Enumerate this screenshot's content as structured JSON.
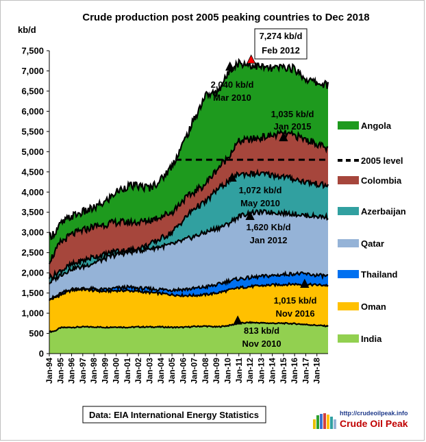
{
  "chart_data": {
    "type": "area",
    "title": "Crude  production post 2005 peaking countries to Dec 2018",
    "ylabel": "kb/d",
    "ylim": [
      0,
      7500
    ],
    "yticks": [
      "0",
      "500",
      "1,000",
      "1,500",
      "2,000",
      "2,500",
      "3,000",
      "3,500",
      "4,000",
      "4,500",
      "5,000",
      "5,500",
      "6,000",
      "6,500",
      "7,000",
      "7,500"
    ],
    "xticks": [
      "Jan-94",
      "Jan-95",
      "Jan-96",
      "Jan-97",
      "Jan-98",
      "Jan-99",
      "Jan-00",
      "Jan-01",
      "Jan-02",
      "Jan-03",
      "Jan-04",
      "Jan-05",
      "Jan-06",
      "Jan-07",
      "Jan-08",
      "Jan-09",
      "Jan-10",
      "Jan-11",
      "Jan-12",
      "Jan-13",
      "Jan-14",
      "Jan-15",
      "Jan-16",
      "Jan-17",
      "Jan-18"
    ],
    "x_range": [
      1994.0,
      2019.0
    ],
    "stack_order": [
      "India",
      "Oman",
      "Thailand",
      "Qatar",
      "Azerbaijan",
      "Colombia",
      "Angola"
    ],
    "colors": {
      "India": "#92d050",
      "Oman": "#ffc000",
      "Thailand": "#0070f0",
      "Qatar": "#95b3d7",
      "Azerbaijan": "#31a0a0",
      "Colombia": "#a6463c",
      "Angola": "#1e9a1e",
      "level2005": "#000000",
      "outline": "#000000",
      "peak_marker": "#ff0000",
      "country_peak_marker": "#000000"
    },
    "cumulative_anchors_x": [
      1994.0,
      1994.5,
      1995.0,
      1996.0,
      1997.0,
      1998.0,
      1999.0,
      2000.0,
      2001.0,
      2002.0,
      2003.0,
      2004.0,
      2005.0,
      2006.0,
      2007.0,
      2008.0,
      2009.0,
      2010.0,
      2010.2,
      2011.0,
      2012.0,
      2013.0,
      2014.0,
      2015.0,
      2016.0,
      2017.0,
      2018.0,
      2019.0
    ],
    "series": [
      {
        "name": "India",
        "cumulative": [
          540,
          560,
          640,
          650,
          660,
          660,
          650,
          660,
          650,
          660,
          660,
          660,
          650,
          650,
          670,
          680,
          660,
          690,
          700,
          750,
          770,
          760,
          750,
          750,
          740,
          720,
          700,
          680
        ]
      },
      {
        "name": "Oman",
        "cumulative": [
          1330,
          1380,
          1450,
          1570,
          1590,
          1560,
          1540,
          1560,
          1560,
          1540,
          1510,
          1490,
          1460,
          1440,
          1440,
          1460,
          1500,
          1560,
          1580,
          1630,
          1660,
          1680,
          1700,
          1710,
          1720,
          1710,
          1700,
          1690
        ]
      },
      {
        "name": "Thailand",
        "cumulative": [
          1350,
          1400,
          1480,
          1590,
          1610,
          1600,
          1580,
          1620,
          1640,
          1620,
          1600,
          1590,
          1580,
          1590,
          1610,
          1650,
          1700,
          1790,
          1810,
          1850,
          1880,
          1910,
          1930,
          1960,
          1980,
          1970,
          1940,
          1920
        ]
      },
      {
        "name": "Qatar",
        "cumulative": [
          1750,
          1850,
          1950,
          2100,
          2150,
          2250,
          2350,
          2450,
          2500,
          2550,
          2600,
          2650,
          2700,
          2800,
          2900,
          3000,
          3100,
          3200,
          3250,
          3400,
          3480,
          3500,
          3500,
          3480,
          3460,
          3420,
          3400,
          3380
        ]
      },
      {
        "name": "Azerbaijan",
        "cumulative": [
          1900,
          1950,
          2050,
          2200,
          2300,
          2400,
          2450,
          2550,
          2550,
          2600,
          2700,
          2850,
          3000,
          3300,
          3600,
          3750,
          4050,
          4250,
          4300,
          4450,
          4450,
          4450,
          4420,
          4380,
          4320,
          4250,
          4200,
          4150
        ]
      },
      {
        "name": "Colombia",
        "cumulative": [
          2300,
          2500,
          2750,
          2950,
          3050,
          3150,
          3200,
          3250,
          3250,
          3250,
          3300,
          3400,
          3500,
          3800,
          4000,
          4200,
          4550,
          4850,
          4950,
          5250,
          5300,
          5350,
          5400,
          5450,
          5400,
          5300,
          5200,
          5050
        ]
      },
      {
        "name": "Angola",
        "cumulative": [
          2900,
          3000,
          3200,
          3400,
          3500,
          3600,
          3750,
          4000,
          4150,
          4150,
          4100,
          4300,
          4650,
          5200,
          5800,
          6400,
          6450,
          6900,
          7050,
          7200,
          7150,
          7100,
          7050,
          7100,
          7050,
          6800,
          6700,
          6650
        ]
      }
    ],
    "level_2005": {
      "label": "2005 level",
      "value": 4800,
      "x_from": 2005.3,
      "x_to": 2019.0
    },
    "annotations": [
      {
        "text": "7,274 kb/d",
        "text2": "Feb 2012",
        "boxed": true,
        "x": 2012.1,
        "y": 7274,
        "marker": "peak"
      },
      {
        "text": "2,040 kb/d",
        "text2": "Mar 2010",
        "boxed": false,
        "x": 2010.2,
        "y": 7100,
        "marker": "country"
      },
      {
        "text": "1,035 kb/d",
        "text2": "Jan 2015",
        "boxed": false,
        "x": 2015.0,
        "y": 5350,
        "marker": "country"
      },
      {
        "text": "1,072 kb/d",
        "text2": "May 2010",
        "boxed": false,
        "x": 2010.4,
        "y": 4350,
        "marker": "country"
      },
      {
        "text": "1,620 Kb/d",
        "text2": "Jan 2012",
        "boxed": false,
        "x": 2012.0,
        "y": 3400,
        "marker": "country"
      },
      {
        "text": "1,015 kb/d",
        "text2": "Nov 2016",
        "boxed": false,
        "x": 2016.9,
        "y": 1720,
        "marker": "country"
      },
      {
        "text": "813 kb/d",
        "text2": "Nov 2010",
        "boxed": false,
        "x": 2010.9,
        "y": 813,
        "marker": "country"
      }
    ],
    "legend": [
      "Angola",
      "2005 level",
      "Colombia",
      "Azerbaijan",
      "Qatar",
      "Thailand",
      "Oman",
      "India"
    ],
    "legend_position": "right",
    "grid": false,
    "source_note": "Data: EIA International Energy Statistics",
    "logo": {
      "url": "http://crudeoilpeak.info",
      "name": "Crude Oil Peak"
    }
  }
}
